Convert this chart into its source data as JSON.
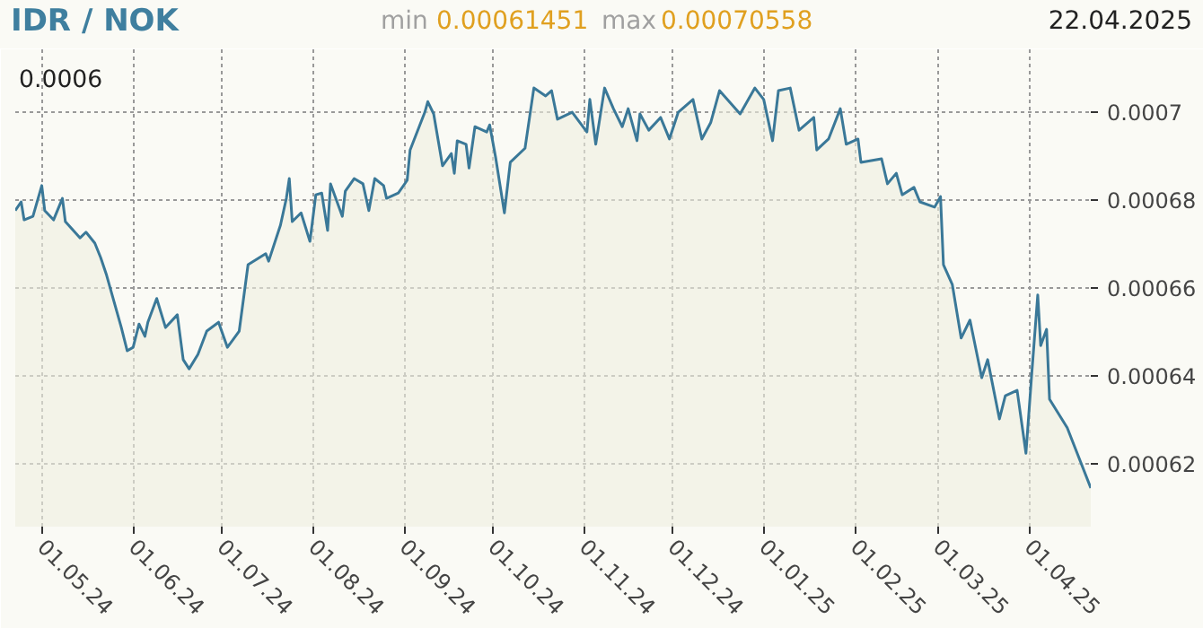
{
  "chart_data": {
    "type": "area",
    "title": "IDR / NOK",
    "annotations": [
      "min",
      "0.00061451",
      "max",
      "0.00070558",
      "22.04.2025",
      "0.0006"
    ],
    "x": [
      "2024-04-22",
      "2024-04-24",
      "2024-04-25",
      "2024-04-28",
      "2024-05-01",
      "2024-05-02",
      "2024-05-05",
      "2024-05-08",
      "2024-05-09",
      "2024-05-14",
      "2024-05-16",
      "2024-05-19",
      "2024-05-21",
      "2024-05-23",
      "2024-05-28",
      "2024-05-30",
      "2024-06-01",
      "2024-06-03",
      "2024-06-05",
      "2024-06-06",
      "2024-06-09",
      "2024-06-12",
      "2024-06-16",
      "2024-06-18",
      "2024-06-20",
      "2024-06-23",
      "2024-06-26",
      "2024-06-30",
      "2024-07-03",
      "2024-07-07",
      "2024-07-10",
      "2024-07-16",
      "2024-07-17",
      "2024-07-21",
      "2024-07-23",
      "2024-07-24",
      "2024-07-25",
      "2024-07-28",
      "2024-07-31",
      "2024-08-02",
      "2024-08-04",
      "2024-08-06",
      "2024-08-07",
      "2024-08-11",
      "2024-08-12",
      "2024-08-15",
      "2024-08-18",
      "2024-08-20",
      "2024-08-22",
      "2024-08-25",
      "2024-08-26",
      "2024-08-30",
      "2024-09-02",
      "2024-09-03",
      "2024-09-08",
      "2024-09-09",
      "2024-09-11",
      "2024-09-14",
      "2024-09-17",
      "2024-09-18",
      "2024-09-19",
      "2024-09-22",
      "2024-09-23",
      "2024-09-25",
      "2024-09-29",
      "2024-09-30",
      "2024-10-02",
      "2024-10-05",
      "2024-10-07",
      "2024-10-12",
      "2024-10-15",
      "2024-10-19",
      "2024-10-21",
      "2024-10-23",
      "2024-10-28",
      "2024-11-02",
      "2024-11-03",
      "2024-11-05",
      "2024-11-08",
      "2024-11-11",
      "2024-11-14",
      "2024-11-16",
      "2024-11-19",
      "2024-11-20",
      "2024-11-23",
      "2024-11-27",
      "2024-11-30",
      "2024-12-03",
      "2024-12-08",
      "2024-12-11",
      "2024-12-14",
      "2024-12-17",
      "2024-12-24",
      "2024-12-29",
      "2025-01-01",
      "2025-01-04",
      "2025-01-06",
      "2025-01-10",
      "2025-01-13",
      "2025-01-18",
      "2025-01-19",
      "2025-01-23",
      "2025-01-27",
      "2025-01-29",
      "2025-02-02",
      "2025-02-03",
      "2025-02-10",
      "2025-02-12",
      "2025-02-15",
      "2025-02-17",
      "2025-02-21",
      "2025-02-23",
      "2025-02-28",
      "2025-03-02",
      "2025-03-03",
      "2025-03-06",
      "2025-03-09",
      "2025-03-12",
      "2025-03-16",
      "2025-03-18",
      "2025-03-22",
      "2025-03-24",
      "2025-03-28",
      "2025-03-31",
      "2025-04-02",
      "2025-04-04",
      "2025-04-05",
      "2025-04-07",
      "2025-04-08",
      "2025-04-14",
      "2025-04-22"
    ],
    "series": [
      {
        "color": "#3a7898",
        "values": [
          0.0006776,
          0.0006796,
          0.0006755,
          0.0006763,
          0.0006833,
          0.0006776,
          0.0006755,
          0.0006804,
          0.0006751,
          0.0006714,
          0.0006727,
          0.0006702,
          0.0006669,
          0.0006629,
          0.000651,
          0.0006457,
          0.0006465,
          0.0006518,
          0.000649,
          0.0006522,
          0.0006576,
          0.000651,
          0.0006539,
          0.0006437,
          0.0006416,
          0.0006449,
          0.0006502,
          0.0006522,
          0.0006465,
          0.0006502,
          0.0006653,
          0.0006678,
          0.0006661,
          0.0006743,
          0.0006804,
          0.0006849,
          0.0006751,
          0.0006771,
          0.0006706,
          0.0006812,
          0.0006816,
          0.0006731,
          0.0006837,
          0.0006763,
          0.000682,
          0.0006849,
          0.0006837,
          0.0006776,
          0.0006849,
          0.0006833,
          0.0006804,
          0.0006816,
          0.0006845,
          0.0006914,
          0.0007,
          0.0007024,
          0.0006996,
          0.0006878,
          0.0006906,
          0.0006861,
          0.0006935,
          0.0006927,
          0.0006873,
          0.0006967,
          0.0006955,
          0.0006971,
          0.0006898,
          0.0006771,
          0.0006886,
          0.0006918,
          0.0007055,
          0.0007037,
          0.0007049,
          0.0006984,
          0.0007,
          0.0006955,
          0.0007029,
          0.0006927,
          0.0007055,
          0.0007008,
          0.0006967,
          0.0007008,
          0.0006935,
          0.0006996,
          0.0006959,
          0.0006988,
          0.0006939,
          0.0007,
          0.0007029,
          0.0006939,
          0.0006976,
          0.0007049,
          0.0006996,
          0.0007055,
          0.0007029,
          0.0006935,
          0.0007049,
          0.0007055,
          0.0006959,
          0.0006988,
          0.0006914,
          0.0006939,
          0.0007008,
          0.0006927,
          0.0006939,
          0.0006886,
          0.0006894,
          0.0006837,
          0.0006861,
          0.0006812,
          0.0006829,
          0.0006796,
          0.0006784,
          0.0006808,
          0.0006653,
          0.0006608,
          0.0006486,
          0.0006527,
          0.0006396,
          0.0006437,
          0.0006302,
          0.0006355,
          0.0006367,
          0.0006224,
          0.0006408,
          0.0006584,
          0.0006469,
          0.0006506,
          0.0006347,
          0.0006282,
          0.0006145
        ]
      }
    ],
    "xlim": [
      "2024-04-22",
      "2025-04-22"
    ],
    "xticks": [
      {
        "value": "2024-05-01",
        "label": "01.05.24"
      },
      {
        "value": "2024-06-01",
        "label": "01.06.24"
      },
      {
        "value": "2024-07-01",
        "label": "01.07.24"
      },
      {
        "value": "2024-08-01",
        "label": "01.08.24"
      },
      {
        "value": "2024-09-01",
        "label": "01.09.24"
      },
      {
        "value": "2024-10-01",
        "label": "01.10.24"
      },
      {
        "value": "2024-11-01",
        "label": "01.11.24"
      },
      {
        "value": "2024-12-01",
        "label": "01.12.24"
      },
      {
        "value": "2025-01-01",
        "label": "01.01.25"
      },
      {
        "value": "2025-02-01",
        "label": "01.02.25"
      },
      {
        "value": "2025-03-01",
        "label": "01.03.25"
      },
      {
        "value": "2025-04-01",
        "label": "01.04.25"
      }
    ],
    "ylim": [
      0.0006057,
      0.0007143
    ],
    "yticks": [
      0.00062,
      0.00064,
      0.00066,
      0.00068,
      0.0007
    ],
    "grid": true
  }
}
